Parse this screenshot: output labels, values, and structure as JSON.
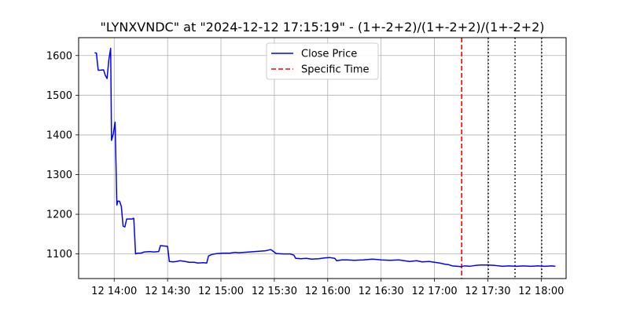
{
  "chart_data": {
    "type": "line",
    "title": "\"LYNXVNDC\" at \"2024-12-12 17:15:19\" - (1+-2+2)/(1+-2+2)/(1+-2+2)",
    "xlabel": "",
    "ylabel": "",
    "x_ticks": [
      {
        "label": "12 14:00",
        "minutes": 840
      },
      {
        "label": "12 14:30",
        "minutes": 870
      },
      {
        "label": "12 15:00",
        "minutes": 900
      },
      {
        "label": "12 15:30",
        "minutes": 930
      },
      {
        "label": "12 16:00",
        "minutes": 960
      },
      {
        "label": "12 16:30",
        "minutes": 990
      },
      {
        "label": "12 17:00",
        "minutes": 1020
      },
      {
        "label": "12 17:30",
        "minutes": 1050
      },
      {
        "label": "12 18:00",
        "minutes": 1080
      }
    ],
    "y_ticks": [
      1100,
      1200,
      1300,
      1400,
      1500,
      1600
    ],
    "xlim": [
      820,
      1094
    ],
    "ylim": [
      1038,
      1645
    ],
    "grid": true,
    "legend_position": "upper-center",
    "series": [
      {
        "name": "Close Price",
        "color": "#0000ff",
        "points": [
          [
            829,
            1607
          ],
          [
            830,
            1606
          ],
          [
            831,
            1563
          ],
          [
            832,
            1563
          ],
          [
            834,
            1564
          ],
          [
            835,
            1550
          ],
          [
            836,
            1542
          ],
          [
            837,
            1590
          ],
          [
            838,
            1618
          ],
          [
            838.5,
            1386
          ],
          [
            839.5,
            1403
          ],
          [
            840.5,
            1432
          ],
          [
            841.5,
            1223
          ],
          [
            842,
            1233
          ],
          [
            843,
            1233
          ],
          [
            844,
            1220
          ],
          [
            845,
            1170
          ],
          [
            846,
            1168
          ],
          [
            847,
            1188
          ],
          [
            849,
            1188
          ],
          [
            850,
            1188
          ],
          [
            851,
            1190
          ],
          [
            852,
            1100
          ],
          [
            853,
            1102
          ],
          [
            855,
            1102
          ],
          [
            857,
            1105
          ],
          [
            860,
            1106
          ],
          [
            862,
            1105
          ],
          [
            865,
            1106
          ],
          [
            866,
            1121
          ],
          [
            868,
            1120
          ],
          [
            870,
            1119
          ],
          [
            871,
            1081
          ],
          [
            873,
            1080
          ],
          [
            875,
            1081
          ],
          [
            877,
            1083
          ],
          [
            880,
            1081
          ],
          [
            882,
            1079
          ],
          [
            885,
            1079
          ],
          [
            887,
            1077
          ],
          [
            890,
            1078
          ],
          [
            892,
            1077
          ],
          [
            893,
            1095
          ],
          [
            895,
            1099
          ],
          [
            898,
            1101
          ],
          [
            901,
            1102
          ],
          [
            905,
            1102
          ],
          [
            908,
            1104
          ],
          [
            910,
            1103
          ],
          [
            913,
            1104
          ],
          [
            916,
            1105
          ],
          [
            919,
            1106
          ],
          [
            922,
            1107
          ],
          [
            925,
            1108
          ],
          [
            927,
            1110
          ],
          [
            928,
            1111
          ],
          [
            929,
            1108
          ],
          [
            931,
            1101
          ],
          [
            935,
            1100
          ],
          [
            939,
            1100
          ],
          [
            941,
            1097
          ],
          [
            942,
            1089
          ],
          [
            945,
            1088
          ],
          [
            948,
            1089
          ],
          [
            951,
            1087
          ],
          [
            955,
            1088
          ],
          [
            958,
            1090
          ],
          [
            961,
            1091
          ],
          [
            964,
            1089
          ],
          [
            965,
            1083
          ],
          [
            968,
            1085
          ],
          [
            971,
            1085
          ],
          [
            975,
            1084
          ],
          [
            980,
            1085
          ],
          [
            985,
            1087
          ],
          [
            988,
            1086
          ],
          [
            990,
            1085
          ],
          [
            995,
            1084
          ],
          [
            1000,
            1085
          ],
          [
            1003,
            1083
          ],
          [
            1006,
            1081
          ],
          [
            1010,
            1083
          ],
          [
            1013,
            1080
          ],
          [
            1017,
            1081
          ],
          [
            1020,
            1079
          ],
          [
            1023,
            1077
          ],
          [
            1026,
            1074
          ],
          [
            1028,
            1073
          ],
          [
            1030,
            1070
          ],
          [
            1033,
            1069
          ],
          [
            1035,
            1068
          ],
          [
            1037,
            1070
          ],
          [
            1040,
            1069
          ],
          [
            1043,
            1071
          ],
          [
            1046,
            1072
          ],
          [
            1050,
            1072
          ],
          [
            1054,
            1071
          ],
          [
            1058,
            1069
          ],
          [
            1062,
            1070
          ],
          [
            1066,
            1069
          ],
          [
            1070,
            1070
          ],
          [
            1074,
            1069
          ],
          [
            1078,
            1070
          ],
          [
            1082,
            1069
          ],
          [
            1086,
            1070
          ],
          [
            1088,
            1069
          ]
        ]
      }
    ],
    "vertical_lines": [
      {
        "name": "Specific Time",
        "minutes": 1035.3,
        "color": "#ff0000",
        "style": "dashed",
        "legend": true
      },
      {
        "minutes": 1050.3,
        "color": "#000000",
        "style": "dotted",
        "legend": false
      },
      {
        "minutes": 1065.3,
        "color": "#000000",
        "style": "dotted",
        "legend": false
      },
      {
        "minutes": 1080.3,
        "color": "#000000",
        "style": "dotted",
        "legend": false
      }
    ]
  }
}
